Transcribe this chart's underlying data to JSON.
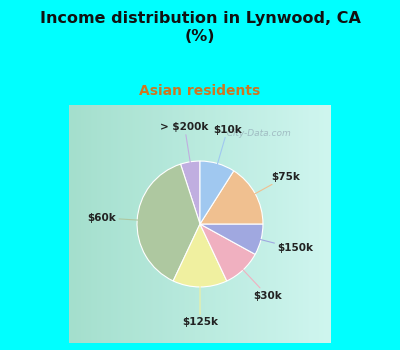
{
  "title": "Income distribution in Lynwood, CA\n(%)",
  "subtitle": "Asian residents",
  "title_color": "#111111",
  "subtitle_color": "#cc7722",
  "background_color": "#00ffff",
  "chart_bg_left": "#c8e8d0",
  "chart_bg_right": "#e8f8f0",
  "watermark": "  City-Data.com",
  "labels": [
    "> $200k",
    "$60k",
    "$125k",
    "$30k",
    "$150k",
    "$75k",
    "$10k"
  ],
  "values": [
    5,
    38,
    14,
    10,
    8,
    16,
    9
  ],
  "colors": [
    "#c0aee0",
    "#aec8a0",
    "#f0f0a0",
    "#f0b0c0",
    "#a0a8e0",
    "#f0c090",
    "#a0c8f0"
  ],
  "startangle": 90,
  "figsize": [
    4.0,
    3.5
  ],
  "dpi": 100
}
